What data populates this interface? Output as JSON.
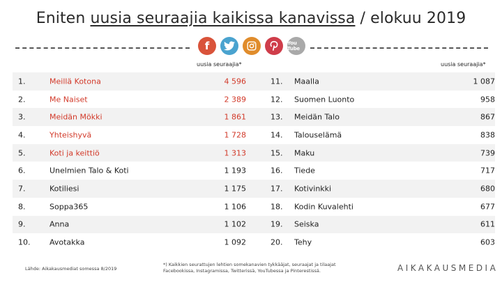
{
  "title": {
    "prefix": "Eniten ",
    "underlined": "uusia seuraajia kaikissa kanavissa",
    "suffix": " / elokuu 2019"
  },
  "social_icons": [
    {
      "name": "facebook-icon",
      "glyph": "f",
      "color": "#d9533a"
    },
    {
      "name": "twitter-icon",
      "glyph": "",
      "color": "#4aa3cf"
    },
    {
      "name": "instagram-icon",
      "glyph": "",
      "color": "#e08c2c"
    },
    {
      "name": "pinterest-icon",
      "glyph": "",
      "color": "#cf3d4a"
    },
    {
      "name": "youtube-icon",
      "glyph": "You Tube",
      "color": "#a9a9a9"
    }
  ],
  "column_header": "uusia seuraajia*",
  "highlight_color": "#d23a2a",
  "rows": [
    {
      "left": {
        "rank": "1.",
        "name": "Meillä Kotona",
        "value": "4 596",
        "highlight": true
      },
      "right": {
        "rank": "11.",
        "name": "Maalla",
        "value": "1 087"
      }
    },
    {
      "left": {
        "rank": "2.",
        "name": "Me Naiset",
        "value": "2 389",
        "highlight": true
      },
      "right": {
        "rank": "12.",
        "name": "Suomen Luonto",
        "value": "958"
      }
    },
    {
      "left": {
        "rank": "3.",
        "name": "Meidän Mökki",
        "value": "1 861",
        "highlight": true
      },
      "right": {
        "rank": "13.",
        "name": "Meidän Talo",
        "value": "867"
      }
    },
    {
      "left": {
        "rank": "4.",
        "name": "Yhteishyvä",
        "value": "1 728",
        "highlight": true
      },
      "right": {
        "rank": "14.",
        "name": "Talouselämä",
        "value": "838"
      }
    },
    {
      "left": {
        "rank": "5.",
        "name": "Koti ja keittiö",
        "value": "1 313",
        "highlight": true
      },
      "right": {
        "rank": "15.",
        "name": "Maku",
        "value": "739"
      }
    },
    {
      "left": {
        "rank": "6.",
        "name": "Unelmien Talo & Koti",
        "value": "1 193",
        "highlight": false
      },
      "right": {
        "rank": "16.",
        "name": "Tiede",
        "value": "717"
      }
    },
    {
      "left": {
        "rank": "7.",
        "name": "Kotiliesi",
        "value": "1 175",
        "highlight": false
      },
      "right": {
        "rank": "17.",
        "name": "Kotivinkki",
        "value": "680"
      }
    },
    {
      "left": {
        "rank": "8.",
        "name": "Soppa365",
        "value": "1 106",
        "highlight": false
      },
      "right": {
        "rank": "18.",
        "name": "Kodin Kuvalehti",
        "value": "677"
      }
    },
    {
      "left": {
        "rank": "9.",
        "name": "Anna",
        "value": "1 102",
        "highlight": false
      },
      "right": {
        "rank": "19.",
        "name": "Seiska",
        "value": "611"
      }
    },
    {
      "left": {
        "rank": "10.",
        "name": "Avotakka",
        "value": "1 092",
        "highlight": false
      },
      "right": {
        "rank": "20.",
        "name": "Tehy",
        "value": "603"
      }
    }
  ],
  "source": "Lähde: Aikakausmediat somessa 8/2019",
  "footnote": "*) Kaikkien seurattujen lehtien somekanavien tykkääjat, seuraajat ja tilaajat Facebookissa, Instagramissa, Twitterissä, YouTubessa ja Pinterestissä.",
  "logo": "AIKAKAUSMEDIA"
}
